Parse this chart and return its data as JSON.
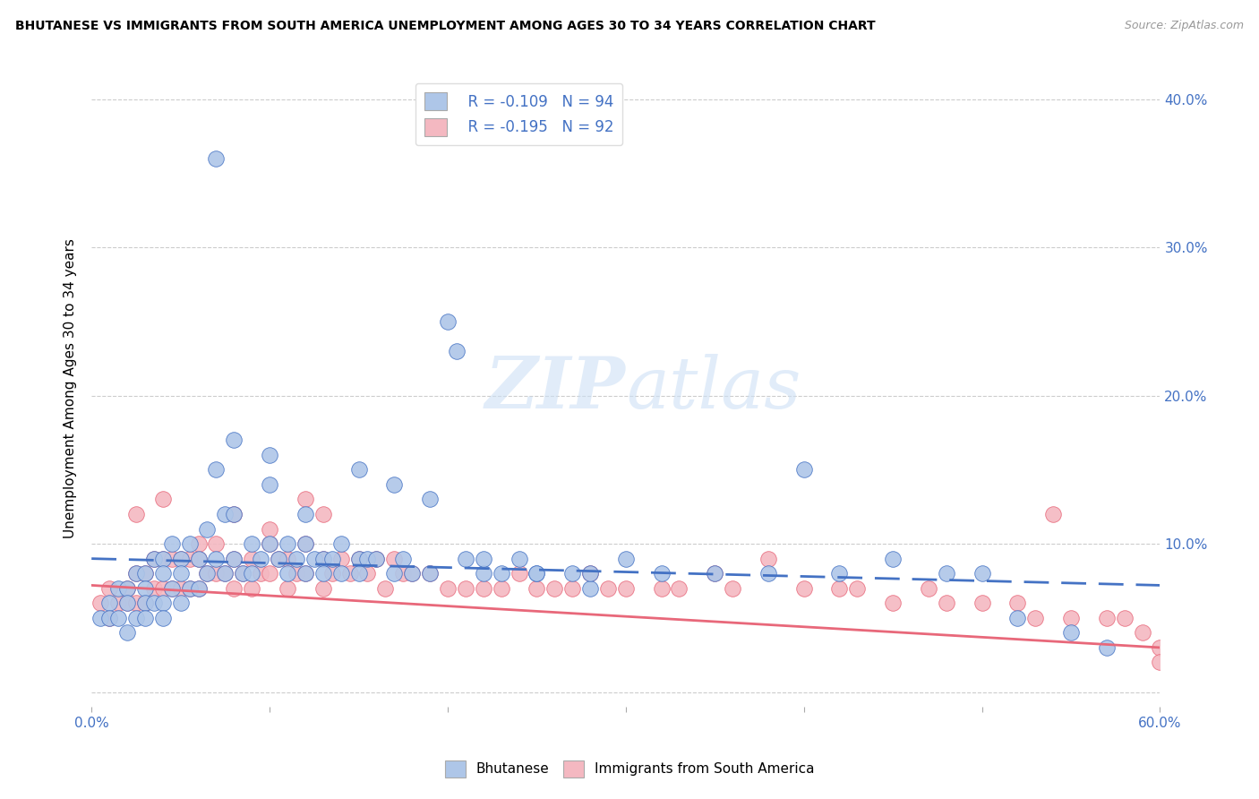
{
  "title": "BHUTANESE VS IMMIGRANTS FROM SOUTH AMERICA UNEMPLOYMENT AMONG AGES 30 TO 34 YEARS CORRELATION CHART",
  "source": "Source: ZipAtlas.com",
  "ylabel": "Unemployment Among Ages 30 to 34 years",
  "xlim": [
    0.0,
    0.6
  ],
  "ylim": [
    -0.01,
    0.42
  ],
  "x_ticks": [
    0.0,
    0.1,
    0.2,
    0.3,
    0.4,
    0.5,
    0.6
  ],
  "x_tick_labels": [
    "0.0%",
    "",
    "",
    "",
    "",
    "",
    "60.0%"
  ],
  "y_ticks": [
    0.0,
    0.1,
    0.2,
    0.3,
    0.4
  ],
  "y_tick_labels": [
    "",
    "10.0%",
    "20.0%",
    "30.0%",
    "40.0%"
  ],
  "bhutanese_color": "#aec6e8",
  "south_america_color": "#f4b8c1",
  "trend_blue_color": "#4472c4",
  "trend_pink_color": "#e8687a",
  "R_bhutanese": -0.109,
  "N_bhutanese": 94,
  "R_south_america": -0.195,
  "N_south_america": 92,
  "watermark_zip": "ZIP",
  "watermark_atlas": "atlas",
  "legend_label_1": "Bhutanese",
  "legend_label_2": "Immigrants from South America",
  "blue_trend_start": 0.09,
  "blue_trend_end": 0.072,
  "pink_trend_start": 0.072,
  "pink_trend_end": 0.03,
  "bhutanese_x": [
    0.005,
    0.01,
    0.01,
    0.015,
    0.015,
    0.02,
    0.02,
    0.02,
    0.025,
    0.025,
    0.03,
    0.03,
    0.03,
    0.03,
    0.035,
    0.035,
    0.04,
    0.04,
    0.04,
    0.04,
    0.045,
    0.045,
    0.05,
    0.05,
    0.05,
    0.055,
    0.055,
    0.06,
    0.06,
    0.065,
    0.065,
    0.07,
    0.07,
    0.075,
    0.075,
    0.08,
    0.08,
    0.085,
    0.09,
    0.09,
    0.095,
    0.1,
    0.1,
    0.105,
    0.11,
    0.11,
    0.115,
    0.12,
    0.12,
    0.125,
    0.13,
    0.13,
    0.135,
    0.14,
    0.14,
    0.15,
    0.15,
    0.155,
    0.16,
    0.17,
    0.175,
    0.18,
    0.19,
    0.2,
    0.205,
    0.21,
    0.22,
    0.23,
    0.24,
    0.25,
    0.27,
    0.28,
    0.3,
    0.32,
    0.35,
    0.38,
    0.4,
    0.42,
    0.45,
    0.48,
    0.5,
    0.52,
    0.55,
    0.57,
    0.08,
    0.1,
    0.12,
    0.15,
    0.17,
    0.19,
    0.22,
    0.25,
    0.28,
    0.07
  ],
  "bhutanese_y": [
    0.05,
    0.06,
    0.05,
    0.07,
    0.05,
    0.07,
    0.06,
    0.04,
    0.08,
    0.05,
    0.08,
    0.07,
    0.06,
    0.05,
    0.09,
    0.06,
    0.09,
    0.08,
    0.06,
    0.05,
    0.1,
    0.07,
    0.09,
    0.08,
    0.06,
    0.1,
    0.07,
    0.09,
    0.07,
    0.11,
    0.08,
    0.15,
    0.09,
    0.12,
    0.08,
    0.12,
    0.09,
    0.08,
    0.1,
    0.08,
    0.09,
    0.14,
    0.1,
    0.09,
    0.1,
    0.08,
    0.09,
    0.1,
    0.08,
    0.09,
    0.09,
    0.08,
    0.09,
    0.1,
    0.08,
    0.09,
    0.08,
    0.09,
    0.09,
    0.08,
    0.09,
    0.08,
    0.08,
    0.25,
    0.23,
    0.09,
    0.08,
    0.08,
    0.09,
    0.08,
    0.08,
    0.07,
    0.09,
    0.08,
    0.08,
    0.08,
    0.15,
    0.08,
    0.09,
    0.08,
    0.08,
    0.05,
    0.04,
    0.03,
    0.17,
    0.16,
    0.12,
    0.15,
    0.14,
    0.13,
    0.09,
    0.08,
    0.08,
    0.36
  ],
  "south_america_x": [
    0.005,
    0.01,
    0.01,
    0.015,
    0.02,
    0.02,
    0.025,
    0.025,
    0.03,
    0.03,
    0.035,
    0.035,
    0.04,
    0.04,
    0.045,
    0.045,
    0.05,
    0.05,
    0.055,
    0.055,
    0.06,
    0.06,
    0.065,
    0.07,
    0.07,
    0.075,
    0.08,
    0.08,
    0.085,
    0.09,
    0.09,
    0.095,
    0.1,
    0.1,
    0.105,
    0.11,
    0.11,
    0.115,
    0.12,
    0.12,
    0.13,
    0.13,
    0.135,
    0.14,
    0.145,
    0.15,
    0.155,
    0.16,
    0.165,
    0.17,
    0.175,
    0.18,
    0.19,
    0.2,
    0.21,
    0.22,
    0.23,
    0.24,
    0.25,
    0.26,
    0.27,
    0.28,
    0.29,
    0.3,
    0.32,
    0.33,
    0.35,
    0.36,
    0.38,
    0.4,
    0.42,
    0.43,
    0.45,
    0.47,
    0.48,
    0.5,
    0.52,
    0.53,
    0.55,
    0.57,
    0.58,
    0.59,
    0.6,
    0.6,
    0.025,
    0.04,
    0.06,
    0.08,
    0.1,
    0.12,
    0.13,
    0.54
  ],
  "south_america_y": [
    0.06,
    0.07,
    0.05,
    0.06,
    0.07,
    0.06,
    0.08,
    0.06,
    0.08,
    0.06,
    0.09,
    0.07,
    0.09,
    0.07,
    0.09,
    0.07,
    0.09,
    0.07,
    0.09,
    0.07,
    0.09,
    0.07,
    0.08,
    0.1,
    0.08,
    0.08,
    0.09,
    0.07,
    0.08,
    0.09,
    0.07,
    0.08,
    0.1,
    0.08,
    0.09,
    0.09,
    0.07,
    0.08,
    0.13,
    0.08,
    0.09,
    0.07,
    0.08,
    0.09,
    0.08,
    0.09,
    0.08,
    0.09,
    0.07,
    0.09,
    0.08,
    0.08,
    0.08,
    0.07,
    0.07,
    0.07,
    0.07,
    0.08,
    0.07,
    0.07,
    0.07,
    0.08,
    0.07,
    0.07,
    0.07,
    0.07,
    0.08,
    0.07,
    0.09,
    0.07,
    0.07,
    0.07,
    0.06,
    0.07,
    0.06,
    0.06,
    0.06,
    0.05,
    0.05,
    0.05,
    0.05,
    0.04,
    0.03,
    0.02,
    0.12,
    0.13,
    0.1,
    0.12,
    0.11,
    0.1,
    0.12,
    0.12
  ]
}
